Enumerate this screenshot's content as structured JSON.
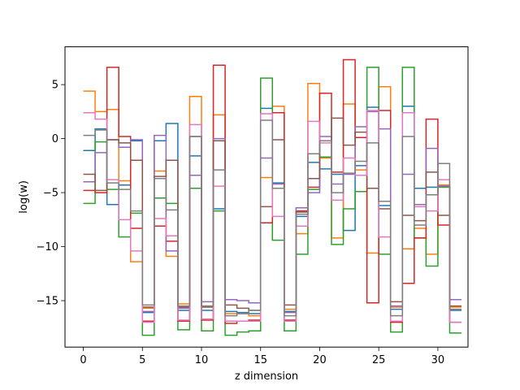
{
  "chart_data": {
    "type": "line",
    "step": "post",
    "title": "",
    "xlabel": "z dimension",
    "ylabel": "log(w)",
    "xlim": [
      -1.55,
      32.55
    ],
    "ylim": [
      -19.3,
      8.5
    ],
    "xticks": [
      0,
      5,
      10,
      15,
      20,
      25,
      30
    ],
    "xtick_labels": [
      "0",
      "5",
      "10",
      "15",
      "20",
      "25",
      "30"
    ],
    "yticks": [
      -15,
      -10,
      -5,
      0,
      5
    ],
    "ytick_labels": [
      "−15",
      "−10",
      "−5",
      "0",
      "5"
    ],
    "grid": false,
    "legend": "none",
    "x": [
      0,
      1,
      2,
      3,
      4,
      5,
      6,
      7,
      8,
      9,
      10,
      11,
      12,
      13,
      14,
      15,
      16,
      17,
      18,
      19,
      20,
      21,
      22,
      23,
      24,
      25,
      26,
      27,
      28,
      29,
      30,
      31
    ],
    "series": [
      {
        "color": "#1f77b4",
        "values": [
          -1.1,
          0.9,
          -6.1,
          -4.3,
          -0.2,
          -16.1,
          -0.2,
          1.4,
          -15.9,
          -1.6,
          -15.9,
          -6.5,
          -16.0,
          -16.1,
          -16.2,
          2.8,
          -4.1,
          -16.0,
          -7.2,
          -2.2,
          -2.8,
          -3.3,
          -8.5,
          -2.5,
          2.9,
          -6.2,
          -15.8,
          3.0,
          -4.6,
          -4.5,
          -4.4,
          -15.9
        ]
      },
      {
        "color": "#ff7f0e",
        "values": [
          4.4,
          2.5,
          2.7,
          -3.9,
          -11.4,
          -15.7,
          -3.0,
          -10.9,
          -15.3,
          3.9,
          -15.5,
          2.2,
          -16.2,
          -16.2,
          -16.4,
          -3.6,
          3.0,
          -15.8,
          -8.8,
          5.1,
          -1.8,
          -9.2,
          3.2,
          -2.9,
          -10.6,
          4.8,
          -15.6,
          -10.2,
          -8.3,
          -10.7,
          -4.3,
          -15.6
        ]
      },
      {
        "color": "#2ca02c",
        "values": [
          -6.0,
          -0.3,
          -4.7,
          -9.1,
          -6.9,
          -18.2,
          -5.5,
          -6.0,
          -17.7,
          -4.6,
          -17.8,
          -6.7,
          -18.2,
          -17.9,
          -17.8,
          5.6,
          -9.4,
          -17.8,
          -10.7,
          -4.7,
          -1.7,
          -9.8,
          -6.5,
          -4.9,
          6.6,
          -10.7,
          -17.9,
          6.6,
          -9.2,
          -11.8,
          -4.5,
          -18.0
        ]
      },
      {
        "color": "#d62728",
        "values": [
          -4.8,
          -5.0,
          6.6,
          0.2,
          -8.3,
          -16.9,
          -8.1,
          -9.5,
          -16.9,
          -3.4,
          -16.8,
          6.8,
          -17.1,
          -16.9,
          -16.8,
          -7.8,
          2.4,
          -16.8,
          -6.7,
          -4.5,
          4.2,
          -3.1,
          7.3,
          0.1,
          -15.2,
          2.6,
          -17.0,
          -13.4,
          -9.2,
          1.8,
          -8.0,
          -17.0
        ]
      },
      {
        "color": "#9467bd",
        "values": [
          -4.0,
          -1.3,
          -0.1,
          -0.8,
          -0.1,
          -16.0,
          0.3,
          -10.4,
          -15.7,
          -3.4,
          -15.1,
          0.0,
          -14.9,
          -15.0,
          -15.2,
          -1.8,
          -4.2,
          -16.1,
          -6.4,
          -5.0,
          0.2,
          -4.2,
          -3.3,
          1.1,
          2.5,
          0.9,
          -15.5,
          -3.3,
          -6.1,
          -0.9,
          -4.4,
          -14.9
        ]
      },
      {
        "color": "#8c564b",
        "values": [
          -3.3,
          -4.8,
          -0.1,
          -0.4,
          -2.0,
          -15.6,
          -3.5,
          -2.0,
          -15.6,
          0.2,
          -15.6,
          -0.2,
          -15.4,
          -15.7,
          -15.9,
          -6.3,
          -0.1,
          -15.4,
          -6.8,
          -3.7,
          -0.2,
          1.9,
          -0.6,
          0.6,
          -4.6,
          -6.5,
          -15.1,
          -7.1,
          -7.6,
          -3.1,
          -7.1,
          -15.5
        ]
      },
      {
        "color": "#e377c2",
        "values": [
          2.4,
          1.8,
          -3.8,
          -7.5,
          -10.4,
          -17.0,
          -7.4,
          -9.0,
          -16.8,
          1.3,
          -16.7,
          -4.4,
          -16.9,
          -16.9,
          -16.9,
          2.3,
          -7.2,
          -16.9,
          -8.1,
          1.6,
          -0.4,
          -5.7,
          -1.8,
          -3.4,
          2.6,
          -9.1,
          -16.9,
          2.4,
          -6.3,
          -6.7,
          -3.8,
          -17.0
        ]
      },
      {
        "color": "#7f7f7f",
        "values": [
          0.3,
          0.8,
          -4.1,
          -4.7,
          -6.7,
          -15.4,
          -3.7,
          -6.6,
          -15.5,
          0.2,
          -15.5,
          -2.9,
          -16.4,
          -16.2,
          -15.9,
          1.7,
          -4.6,
          -16.4,
          -7.0,
          -1.4,
          -0.2,
          -5.0,
          -3.2,
          -2.1,
          -0.4,
          -5.8,
          -16.4,
          0.2,
          -8.0,
          -5.2,
          -2.3,
          -15.8
        ]
      }
    ]
  }
}
